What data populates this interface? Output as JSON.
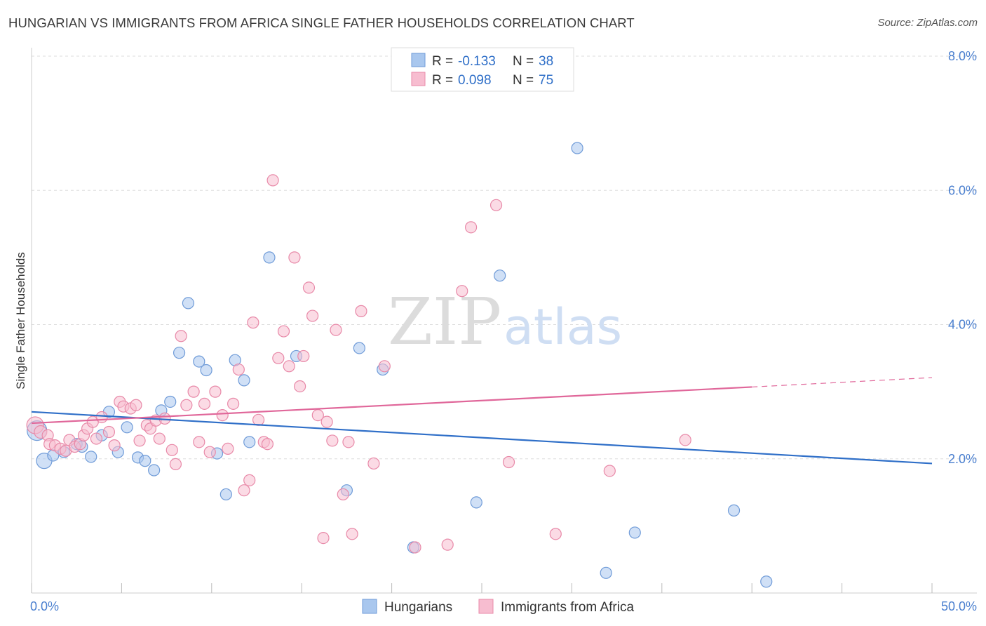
{
  "title": "HUNGARIAN VS IMMIGRANTS FROM AFRICA SINGLE FATHER HOUSEHOLDS CORRELATION CHART",
  "source": "Source: ZipAtlas.com",
  "watermark": {
    "zip": "ZIP",
    "atlas": "atlas"
  },
  "legend_top": {
    "rows": [
      {
        "r_label": "R =",
        "r_value": "-0.133",
        "n_label": "N =",
        "n_value": "38",
        "color": "#a9c7ee",
        "stroke": "#6f9bd8"
      },
      {
        "r_label": "R =",
        "r_value": "0.098",
        "n_label": "N =",
        "n_value": "75",
        "color": "#f7bdd0",
        "stroke": "#e889a8"
      }
    ]
  },
  "legend_bottom": [
    {
      "label": "Hungarians",
      "color": "#a9c7ee",
      "stroke": "#6f9bd8"
    },
    {
      "label": "Immigrants from Africa",
      "color": "#f7bdd0",
      "stroke": "#e889a8"
    }
  ],
  "chart_data": {
    "type": "scatter",
    "ylabel": "Single Father Households",
    "xlabel": "",
    "xlim": [
      0,
      50
    ],
    "ylim": [
      0,
      8
    ],
    "x_tick_labels": [
      "0.0%",
      "50.0%"
    ],
    "y_ticks": [
      2,
      4,
      6,
      8
    ],
    "y_tick_labels": [
      "2.0%",
      "4.0%",
      "6.0%",
      "8.0%"
    ],
    "grid": true,
    "legend_placement": "top-center",
    "series": [
      {
        "name": "Hungarians",
        "color": "#a9c7ee",
        "stroke": "#6f9bd8",
        "trend_color": "#2f6fc8",
        "trend": {
          "x": [
            0,
            50
          ],
          "y": [
            2.7,
            1.93
          ]
        },
        "points": [
          {
            "x": 0.3,
            "y": 2.42,
            "s": 14
          },
          {
            "x": 0.7,
            "y": 1.97,
            "s": 11
          },
          {
            "x": 1.2,
            "y": 2.05,
            "s": 8
          },
          {
            "x": 1.8,
            "y": 2.1,
            "s": 8
          },
          {
            "x": 2.5,
            "y": 2.22,
            "s": 8
          },
          {
            "x": 2.8,
            "y": 2.18,
            "s": 8
          },
          {
            "x": 3.3,
            "y": 2.03,
            "s": 8
          },
          {
            "x": 3.9,
            "y": 2.35,
            "s": 8
          },
          {
            "x": 4.3,
            "y": 2.7,
            "s": 8
          },
          {
            "x": 4.8,
            "y": 2.1,
            "s": 8
          },
          {
            "x": 5.3,
            "y": 2.47,
            "s": 8
          },
          {
            "x": 5.9,
            "y": 2.02,
            "s": 8
          },
          {
            "x": 6.3,
            "y": 1.97,
            "s": 8
          },
          {
            "x": 6.8,
            "y": 1.83,
            "s": 8
          },
          {
            "x": 7.2,
            "y": 2.72,
            "s": 8
          },
          {
            "x": 7.7,
            "y": 2.85,
            "s": 8
          },
          {
            "x": 8.2,
            "y": 3.58,
            "s": 8
          },
          {
            "x": 8.7,
            "y": 4.32,
            "s": 8
          },
          {
            "x": 9.3,
            "y": 3.45,
            "s": 8
          },
          {
            "x": 9.7,
            "y": 3.32,
            "s": 8
          },
          {
            "x": 10.3,
            "y": 2.08,
            "s": 8
          },
          {
            "x": 10.8,
            "y": 1.47,
            "s": 8
          },
          {
            "x": 11.3,
            "y": 3.47,
            "s": 8
          },
          {
            "x": 11.8,
            "y": 3.17,
            "s": 8
          },
          {
            "x": 12.1,
            "y": 2.25,
            "s": 8
          },
          {
            "x": 13.2,
            "y": 5.0,
            "s": 8
          },
          {
            "x": 14.7,
            "y": 3.53,
            "s": 8
          },
          {
            "x": 17.5,
            "y": 1.53,
            "s": 8
          },
          {
            "x": 18.2,
            "y": 3.65,
            "s": 8
          },
          {
            "x": 19.5,
            "y": 3.33,
            "s": 8
          },
          {
            "x": 21.2,
            "y": 0.68,
            "s": 8
          },
          {
            "x": 24.7,
            "y": 1.35,
            "s": 8
          },
          {
            "x": 26.0,
            "y": 4.73,
            "s": 8
          },
          {
            "x": 30.3,
            "y": 6.63,
            "s": 8
          },
          {
            "x": 31.9,
            "y": 0.3,
            "s": 8
          },
          {
            "x": 33.5,
            "y": 0.9,
            "s": 8
          },
          {
            "x": 39.0,
            "y": 1.23,
            "s": 8
          },
          {
            "x": 40.8,
            "y": 0.17,
            "s": 8
          }
        ]
      },
      {
        "name": "Immigrants from Africa",
        "color": "#f7bdd0",
        "stroke": "#e889a8",
        "trend_color": "#e0679a",
        "trend": {
          "x": [
            0,
            40
          ],
          "y": [
            2.53,
            3.07
          ]
        },
        "trend_dashed": {
          "x": [
            40,
            50
          ],
          "y": [
            3.07,
            3.21
          ]
        },
        "points": [
          {
            "x": 0.2,
            "y": 2.5,
            "s": 12
          },
          {
            "x": 0.5,
            "y": 2.4,
            "s": 9
          },
          {
            "x": 0.9,
            "y": 2.35,
            "s": 8
          },
          {
            "x": 1.0,
            "y": 2.22,
            "s": 8
          },
          {
            "x": 1.3,
            "y": 2.2,
            "s": 8
          },
          {
            "x": 1.6,
            "y": 2.15,
            "s": 8
          },
          {
            "x": 1.9,
            "y": 2.12,
            "s": 8
          },
          {
            "x": 2.1,
            "y": 2.28,
            "s": 8
          },
          {
            "x": 2.4,
            "y": 2.18,
            "s": 8
          },
          {
            "x": 2.7,
            "y": 2.22,
            "s": 8
          },
          {
            "x": 2.9,
            "y": 2.35,
            "s": 8
          },
          {
            "x": 3.1,
            "y": 2.45,
            "s": 8
          },
          {
            "x": 3.4,
            "y": 2.55,
            "s": 8
          },
          {
            "x": 3.6,
            "y": 2.3,
            "s": 8
          },
          {
            "x": 3.9,
            "y": 2.62,
            "s": 8
          },
          {
            "x": 4.3,
            "y": 2.4,
            "s": 8
          },
          {
            "x": 4.6,
            "y": 2.2,
            "s": 8
          },
          {
            "x": 4.9,
            "y": 2.85,
            "s": 8
          },
          {
            "x": 5.1,
            "y": 2.78,
            "s": 8
          },
          {
            "x": 5.5,
            "y": 2.75,
            "s": 8
          },
          {
            "x": 5.8,
            "y": 2.8,
            "s": 8
          },
          {
            "x": 6.0,
            "y": 2.27,
            "s": 8
          },
          {
            "x": 6.4,
            "y": 2.5,
            "s": 8
          },
          {
            "x": 6.6,
            "y": 2.45,
            "s": 8
          },
          {
            "x": 6.9,
            "y": 2.57,
            "s": 8
          },
          {
            "x": 7.1,
            "y": 2.3,
            "s": 8
          },
          {
            "x": 7.4,
            "y": 2.6,
            "s": 8
          },
          {
            "x": 7.8,
            "y": 2.13,
            "s": 8
          },
          {
            "x": 8.0,
            "y": 1.92,
            "s": 8
          },
          {
            "x": 8.3,
            "y": 3.83,
            "s": 8
          },
          {
            "x": 8.6,
            "y": 2.8,
            "s": 8
          },
          {
            "x": 9.0,
            "y": 3.0,
            "s": 8
          },
          {
            "x": 9.3,
            "y": 2.25,
            "s": 8
          },
          {
            "x": 9.6,
            "y": 2.82,
            "s": 8
          },
          {
            "x": 9.9,
            "y": 2.1,
            "s": 8
          },
          {
            "x": 10.2,
            "y": 3.0,
            "s": 8
          },
          {
            "x": 10.6,
            "y": 2.65,
            "s": 8
          },
          {
            "x": 10.9,
            "y": 2.15,
            "s": 8
          },
          {
            "x": 11.2,
            "y": 2.82,
            "s": 8
          },
          {
            "x": 11.5,
            "y": 3.33,
            "s": 8
          },
          {
            "x": 11.8,
            "y": 1.53,
            "s": 8
          },
          {
            "x": 12.1,
            "y": 1.68,
            "s": 8
          },
          {
            "x": 12.3,
            "y": 4.03,
            "s": 8
          },
          {
            "x": 12.6,
            "y": 2.58,
            "s": 8
          },
          {
            "x": 12.9,
            "y": 2.25,
            "s": 8
          },
          {
            "x": 13.1,
            "y": 2.22,
            "s": 8
          },
          {
            "x": 13.4,
            "y": 6.15,
            "s": 8
          },
          {
            "x": 13.7,
            "y": 3.5,
            "s": 8
          },
          {
            "x": 14.0,
            "y": 3.9,
            "s": 8
          },
          {
            "x": 14.3,
            "y": 3.38,
            "s": 8
          },
          {
            "x": 14.6,
            "y": 5.0,
            "s": 8
          },
          {
            "x": 14.9,
            "y": 3.08,
            "s": 8
          },
          {
            "x": 15.1,
            "y": 3.53,
            "s": 8
          },
          {
            "x": 15.4,
            "y": 4.55,
            "s": 8
          },
          {
            "x": 15.6,
            "y": 4.13,
            "s": 8
          },
          {
            "x": 15.9,
            "y": 2.65,
            "s": 8
          },
          {
            "x": 16.2,
            "y": 0.82,
            "s": 8
          },
          {
            "x": 16.4,
            "y": 2.55,
            "s": 8
          },
          {
            "x": 16.7,
            "y": 2.27,
            "s": 8
          },
          {
            "x": 16.9,
            "y": 3.92,
            "s": 8
          },
          {
            "x": 17.3,
            "y": 1.47,
            "s": 8
          },
          {
            "x": 17.6,
            "y": 2.25,
            "s": 8
          },
          {
            "x": 17.8,
            "y": 0.88,
            "s": 8
          },
          {
            "x": 18.3,
            "y": 4.2,
            "s": 8
          },
          {
            "x": 19.0,
            "y": 1.93,
            "s": 8
          },
          {
            "x": 19.6,
            "y": 3.38,
            "s": 8
          },
          {
            "x": 21.3,
            "y": 0.68,
            "s": 8
          },
          {
            "x": 23.1,
            "y": 0.72,
            "s": 8
          },
          {
            "x": 23.9,
            "y": 4.5,
            "s": 8
          },
          {
            "x": 24.4,
            "y": 5.45,
            "s": 8
          },
          {
            "x": 25.8,
            "y": 5.78,
            "s": 8
          },
          {
            "x": 26.5,
            "y": 1.95,
            "s": 8
          },
          {
            "x": 29.1,
            "y": 0.88,
            "s": 8
          },
          {
            "x": 32.1,
            "y": 1.82,
            "s": 8
          },
          {
            "x": 36.3,
            "y": 2.28,
            "s": 8
          }
        ]
      }
    ]
  }
}
